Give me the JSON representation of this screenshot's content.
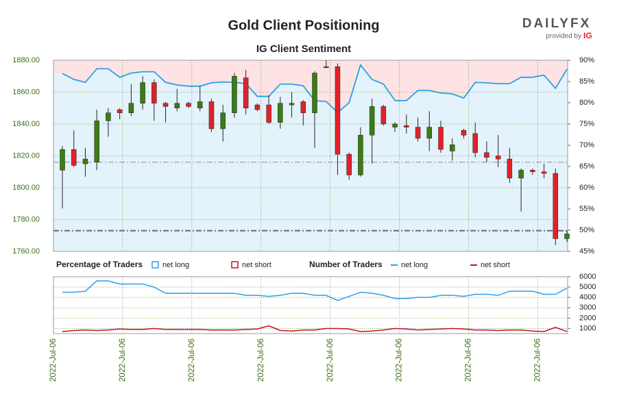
{
  "chart_data": [
    {
      "type": "candlestick",
      "title": "Gold Client Positioning",
      "subtitle": "IG Client Sentiment",
      "logo": "DAILYFX",
      "logo_note": "provided by",
      "logo_brand": "IG",
      "open": [
        1811,
        1824,
        1815,
        1816,
        1842,
        1849,
        1847,
        1853,
        1866,
        1853,
        1850,
        1853,
        1850,
        1854,
        1837,
        1847,
        1869,
        1852,
        1852,
        1841,
        1852,
        1854,
        1847,
        1876,
        1876,
        1821,
        1808,
        1833,
        1851,
        1838,
        1839,
        1838,
        1831,
        1838,
        1823,
        1836,
        1834,
        1822,
        1820,
        1818,
        1806,
        1811,
        1810,
        1809,
        1768
      ],
      "high": [
        1826,
        1836,
        1825,
        1849,
        1850,
        1850,
        1865,
        1870,
        1868,
        1854,
        1862,
        1854,
        1864,
        1856,
        1852,
        1872,
        1874,
        1853,
        1858,
        1857,
        1860,
        1855,
        1873,
        1880,
        1878,
        1822,
        1838,
        1856,
        1852,
        1841,
        1846,
        1844,
        1848,
        1842,
        1831,
        1837,
        1841,
        1829,
        1833,
        1825,
        1812,
        1812,
        1815,
        1812,
        1773
      ],
      "low": [
        1787,
        1813,
        1807,
        1811,
        1832,
        1843,
        1845,
        1849,
        1842,
        1841,
        1848,
        1850,
        1848,
        1835,
        1829,
        1844,
        1846,
        1848,
        1840,
        1837,
        1844,
        1839,
        1825,
        1875,
        1808,
        1805,
        1807,
        1815,
        1839,
        1835,
        1834,
        1829,
        1823,
        1822,
        1817,
        1831,
        1819,
        1816,
        1813,
        1803,
        1785,
        1808,
        1806,
        1764,
        1766
      ],
      "close": [
        1824,
        1814,
        1818,
        1842,
        1847,
        1847,
        1853,
        1866,
        1853,
        1851,
        1853,
        1851,
        1854,
        1837,
        1847,
        1870,
        1850,
        1849,
        1841,
        1853,
        1853,
        1847,
        1872,
        1876,
        1821,
        1808,
        1833,
        1851,
        1840,
        1840,
        1838,
        1831,
        1838,
        1824,
        1827,
        1833,
        1822,
        1819,
        1818,
        1806,
        1811,
        1810,
        1809,
        1768,
        1771
      ],
      "up_color": "#3a7d14",
      "down_color": "#e3202a",
      "series": [
        {
          "name": "net long",
          "axis": "y2",
          "color": "#2c9fe6",
          "values": [
            86.9,
            85.5,
            84.8,
            88,
            88,
            86,
            87,
            87.3,
            87.3,
            84.8,
            84.2,
            83.9,
            83.9,
            84.7,
            84.9,
            84.8,
            84.5,
            81.5,
            81.5,
            84.4,
            84.4,
            84.0,
            80.5,
            80.3,
            77.7,
            80,
            88.9,
            85.5,
            84.4,
            80.5,
            80.5,
            82.9,
            82.9,
            82.3,
            82.1,
            81.1,
            84.8,
            84.7,
            84.5,
            84.5,
            86,
            86,
            86.5,
            83.4,
            87.9
          ]
        }
      ],
      "reference_lines": [
        1816,
        1773
      ],
      "ylim": [
        1760,
        1880
      ],
      "yticks": [
        {
          "value": 1760,
          "label": "1760.00"
        },
        {
          "value": 1780,
          "label": "1780.00"
        },
        {
          "value": 1800,
          "label": "1800.00"
        },
        {
          "value": 1820,
          "label": "1820.00"
        },
        {
          "value": 1840,
          "label": "1840.00"
        },
        {
          "value": 1860,
          "label": "1860.00"
        },
        {
          "value": 1880,
          "label": "1880.00"
        }
      ],
      "y2lim": [
        45,
        90
      ],
      "y2ticks": [
        {
          "value": 45,
          "label": "45%"
        },
        {
          "value": 50,
          "label": "50%"
        },
        {
          "value": 55,
          "label": "55%"
        },
        {
          "value": 60,
          "label": "60%"
        },
        {
          "value": 65,
          "label": "65%"
        },
        {
          "value": 70,
          "label": "70%"
        },
        {
          "value": 75,
          "label": "75%"
        },
        {
          "value": 80,
          "label": "80%"
        },
        {
          "value": 85,
          "label": "85%"
        },
        {
          "value": 90,
          "label": "90%"
        }
      ],
      "grid": true
    },
    {
      "type": "line",
      "legend": [
        {
          "title": "Percentage of Traders",
          "entries": [
            {
              "name": "net long",
              "color": "#2c9fe6"
            },
            {
              "name": "net short",
              "color": "#c0102a"
            }
          ]
        },
        {
          "title": "Number of Traders",
          "entries": [
            {
              "name": "net long",
              "color": "#2c9fe6"
            },
            {
              "name": "net short",
              "color": "#c0102a"
            }
          ]
        }
      ],
      "series": [
        {
          "name": "net long",
          "color": "#2c9fe6",
          "values": [
            4500,
            4500,
            4600,
            5600,
            5600,
            5300,
            5300,
            5300,
            5000,
            4400,
            4400,
            4400,
            4400,
            4400,
            4400,
            4400,
            4200,
            4200,
            4100,
            4200,
            4400,
            4400,
            4200,
            4200,
            3700,
            4100,
            4500,
            4400,
            4200,
            3900,
            3900,
            4000,
            4000,
            4200,
            4200,
            4100,
            4300,
            4300,
            4200,
            4600,
            4600,
            4600,
            4300,
            4300,
            4900
          ]
        },
        {
          "name": "net short",
          "color": "#c0102a",
          "values": [
            700,
            800,
            850,
            800,
            850,
            950,
            900,
            900,
            1000,
            900,
            900,
            900,
            900,
            850,
            850,
            850,
            900,
            950,
            1250,
            800,
            750,
            850,
            850,
            1000,
            1000,
            950,
            700,
            750,
            850,
            1000,
            950,
            850,
            900,
            950,
            1000,
            950,
            850,
            850,
            800,
            850,
            850,
            750,
            700,
            1100,
            700
          ]
        }
      ],
      "xtick_labels": [
        "2022-Jul-06",
        "2022-Jul-06",
        "2022-Jul-06",
        "2022-Jul-06",
        "2022-Jul-06",
        "2022-Jul-06",
        "2022-Jul-06",
        "2022-Jul-06"
      ],
      "ylim": [
        500,
        6000
      ],
      "yticks": [
        1000,
        2000,
        3000,
        4000,
        5000,
        6000
      ],
      "grid": true
    }
  ]
}
